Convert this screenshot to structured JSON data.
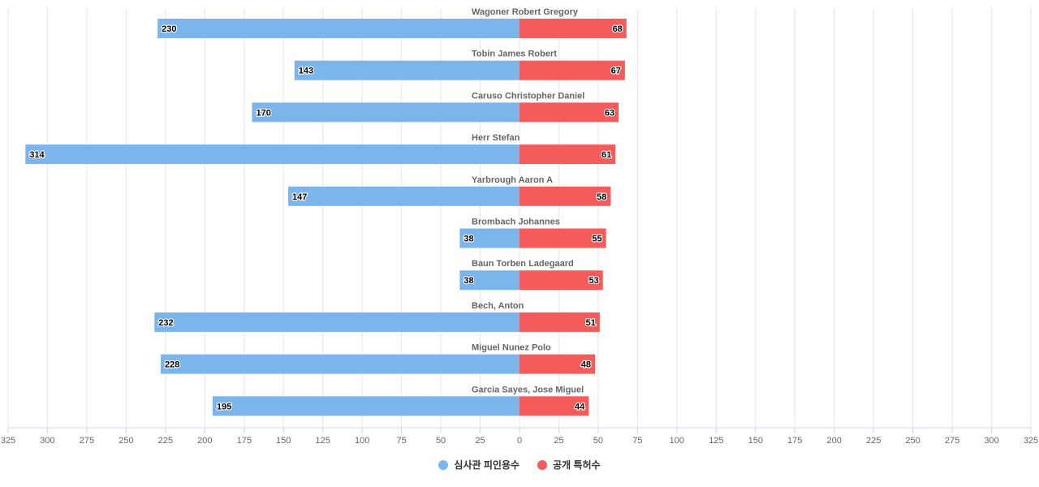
{
  "chart_data": {
    "type": "bar",
    "orientation": "horizontal-diverging",
    "categories": [
      "Wagoner Robert Gregory",
      "Tobin James Robert",
      "Caruso Christopher Daniel",
      "Herr Stefan",
      "Yarbrough Aaron A",
      "Brombach Johannes",
      "Baun Torben Ladegaard",
      "Bech, Anton",
      "Miguel Nunez Polo",
      "Garcia Sayes, Jose Miguel"
    ],
    "series": [
      {
        "name": "심사관 피인용수",
        "color": "#7cb5ec",
        "direction": "left",
        "values": [
          230,
          143,
          170,
          314,
          147,
          38,
          38,
          232,
          228,
          195
        ]
      },
      {
        "name": "공개 특허수",
        "color": "#f45b5b",
        "direction": "right",
        "values": [
          68,
          67,
          63,
          61,
          58,
          55,
          53,
          51,
          48,
          44
        ]
      }
    ],
    "xlim": [
      -325,
      325
    ],
    "x_ticks": [
      325,
      300,
      275,
      250,
      225,
      200,
      175,
      150,
      125,
      100,
      75,
      50,
      25,
      0,
      25,
      50,
      75,
      100,
      125,
      150,
      175,
      200,
      225,
      250,
      275,
      300,
      325
    ],
    "grid": true,
    "legend_position": "bottom-center"
  }
}
